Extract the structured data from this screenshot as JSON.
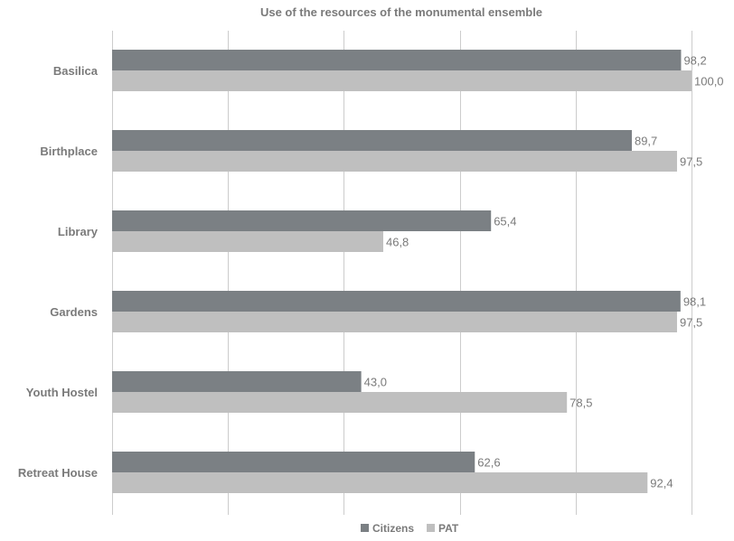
{
  "chart_data": {
    "type": "bar",
    "orientation": "horizontal",
    "title": "Use of the resources of the monumental ensemble",
    "categories": [
      "Basilica",
      "Birthplace",
      "Library",
      "Gardens",
      "Youth Hostel",
      "Retreat House"
    ],
    "series": [
      {
        "name": "Citizens",
        "color": "#7b8084",
        "values": [
          98.2,
          89.7,
          65.4,
          98.1,
          43.0,
          62.6
        ],
        "labels": [
          "98,2",
          "89,7",
          "65,4",
          "98,1",
          "43,0",
          "62,6"
        ]
      },
      {
        "name": "PAT",
        "color": "#bfbfbf",
        "values": [
          100.0,
          97.5,
          46.8,
          97.5,
          78.5,
          92.4
        ],
        "labels": [
          "100,0",
          "97,5",
          "46,8",
          "97,5",
          "78,5",
          "92,4"
        ]
      }
    ],
    "xlim": [
      0,
      100
    ],
    "grid": true,
    "legend_position": "bottom",
    "xlabel": "",
    "ylabel": ""
  },
  "colors": {
    "text": "#7a7a7a",
    "grid": "#cccccc"
  }
}
